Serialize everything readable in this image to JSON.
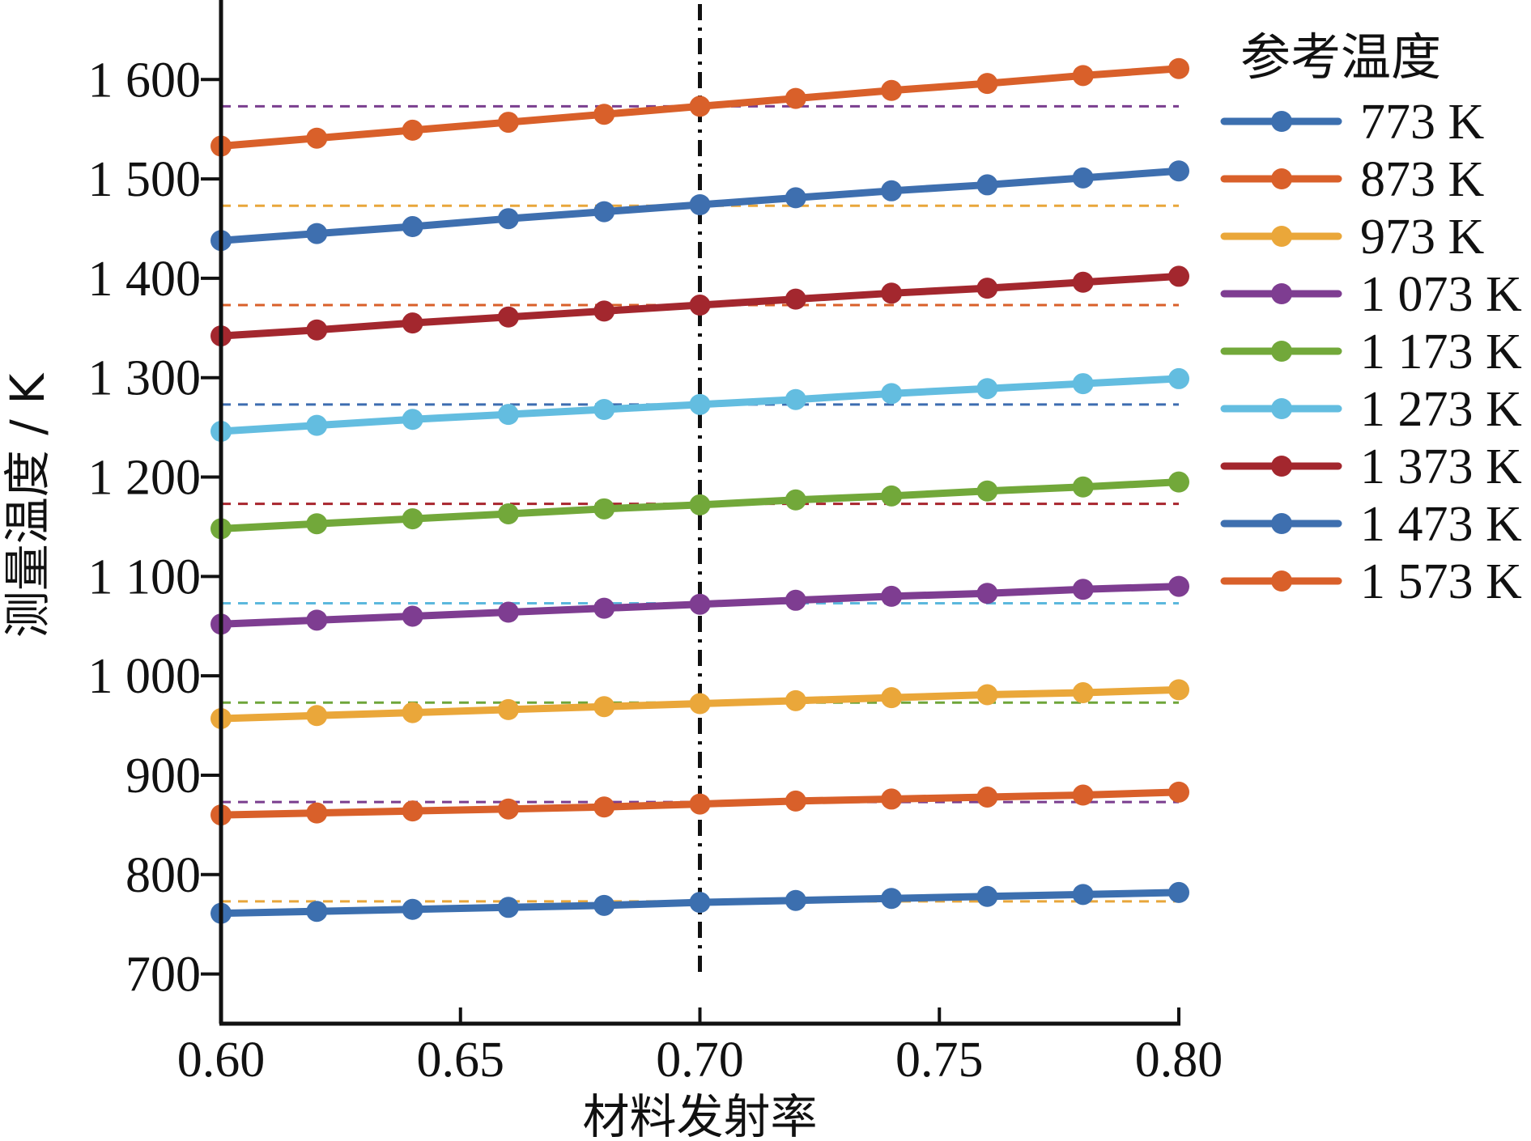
{
  "chart_data": {
    "type": "line",
    "title": "",
    "xlabel": "材料发射率",
    "ylabel": "测量温度 / K",
    "xlim": [
      0.6,
      0.8
    ],
    "ylim": [
      650,
      1680
    ],
    "x_ticks": [
      0.6,
      0.65,
      0.7,
      0.75,
      0.8
    ],
    "x_tick_labels": [
      "0.60",
      "0.65",
      "0.70",
      "0.75",
      "0.80"
    ],
    "y_ticks": [
      700,
      800,
      900,
      1000,
      1100,
      1200,
      1300,
      1400,
      1500,
      1600
    ],
    "y_tick_labels": [
      "700",
      "800",
      "900",
      "1 000",
      "1 100",
      "1 200",
      "1 300",
      "1 400",
      "1 500",
      "1 600"
    ],
    "grid": false,
    "legend_title": "参考温度",
    "legend_position": "right",
    "vertical_line": {
      "x": 0.7,
      "style": "dash-dot",
      "color": "#111111"
    },
    "x": [
      0.6,
      0.62,
      0.64,
      0.66,
      0.68,
      0.7,
      0.72,
      0.74,
      0.76,
      0.78,
      0.8
    ],
    "series": [
      {
        "name": "773 K",
        "reference": 773,
        "color": "#3C6FAF",
        "ref_line_color": "#E8A63B",
        "values": [
          761,
          763,
          765,
          767,
          769,
          772,
          774,
          776,
          778,
          780,
          782
        ]
      },
      {
        "name": "873 K",
        "reference": 873,
        "color": "#D9602A",
        "ref_line_color": "#7A3E8F",
        "values": [
          860,
          862,
          864,
          866,
          868,
          871,
          874,
          876,
          878,
          880,
          883
        ]
      },
      {
        "name": "973 K",
        "reference": 973,
        "color": "#EAA73A",
        "ref_line_color": "#6FA53A",
        "values": [
          957,
          960,
          963,
          966,
          969,
          972,
          975,
          978,
          981,
          983,
          986
        ]
      },
      {
        "name": "1 073 K",
        "reference": 1073,
        "color": "#7E3D91",
        "ref_line_color": "#5CB8DD",
        "values": [
          1052,
          1056,
          1060,
          1064,
          1068,
          1072,
          1076,
          1080,
          1083,
          1087,
          1090
        ]
      },
      {
        "name": "1 173 K",
        "reference": 1173,
        "color": "#72A83A",
        "ref_line_color": "#A8252E",
        "values": [
          1148,
          1153,
          1158,
          1163,
          1168,
          1172,
          1177,
          1181,
          1186,
          1190,
          1195
        ]
      },
      {
        "name": "1 273 K",
        "reference": 1273,
        "color": "#63BDE0",
        "ref_line_color": "#3D6DB0",
        "values": [
          1246,
          1252,
          1258,
          1263,
          1268,
          1273,
          1278,
          1284,
          1289,
          1294,
          1299
        ]
      },
      {
        "name": "1 373 K",
        "reference": 1373,
        "color": "#A3272E",
        "ref_line_color": "#D9602A",
        "values": [
          1342,
          1348,
          1355,
          1361,
          1367,
          1373,
          1379,
          1385,
          1390,
          1396,
          1402
        ]
      },
      {
        "name": "1 473 K",
        "reference": 1473,
        "color": "#3E6FAF",
        "ref_line_color": "#E8A63B",
        "values": [
          1438,
          1445,
          1452,
          1460,
          1467,
          1474,
          1481,
          1488,
          1494,
          1501,
          1508
        ]
      },
      {
        "name": "1 573 K",
        "reference": 1573,
        "color": "#D9602A",
        "ref_line_color": "#7A3E8F",
        "values": [
          1533,
          1541,
          1549,
          1557,
          1565,
          1573,
          1581,
          1589,
          1596,
          1604,
          1611
        ]
      }
    ]
  }
}
